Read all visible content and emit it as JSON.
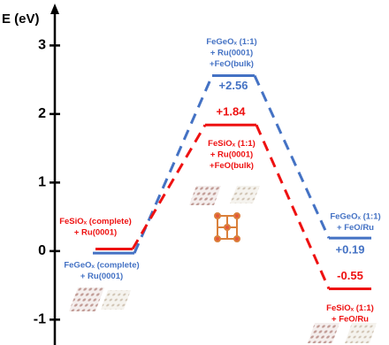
{
  "chart_data": {
    "type": "energy",
    "y_label": "E (eV)",
    "ylim": [
      -1.37,
      3.56
    ],
    "yticks": [
      -1,
      0,
      1,
      2,
      3
    ],
    "series": [
      {
        "color": "#4472c4",
        "values": [
          -0.03,
          2.56,
          0.19
        ],
        "value_labels": [
          null,
          "+2.56",
          "+0.19"
        ],
        "labels": [
          [
            "FeGeOₓ (complete)",
            "+ Ru(0001)"
          ],
          [
            "FeGeOₓ (1:1)",
            "+ Ru(0001)",
            "+FeO(bulk)"
          ],
          [
            "FeGeOₓ (1:1)",
            "+ FeO/Ru"
          ]
        ]
      },
      {
        "color": "#ee1111",
        "values": [
          0.03,
          1.84,
          -0.55
        ],
        "value_labels": [
          null,
          "+1.84",
          "-0.55"
        ],
        "labels": [
          [
            "FeSiOₓ (complete)",
            "+ Ru(0001)"
          ],
          [
            "FeSiOₓ (1:1)",
            "+ Ru(0001)",
            "+FeO(bulk)"
          ],
          [
            "FeSiOₓ (1:1)",
            "+ FeO/Ru"
          ]
        ]
      }
    ]
  }
}
